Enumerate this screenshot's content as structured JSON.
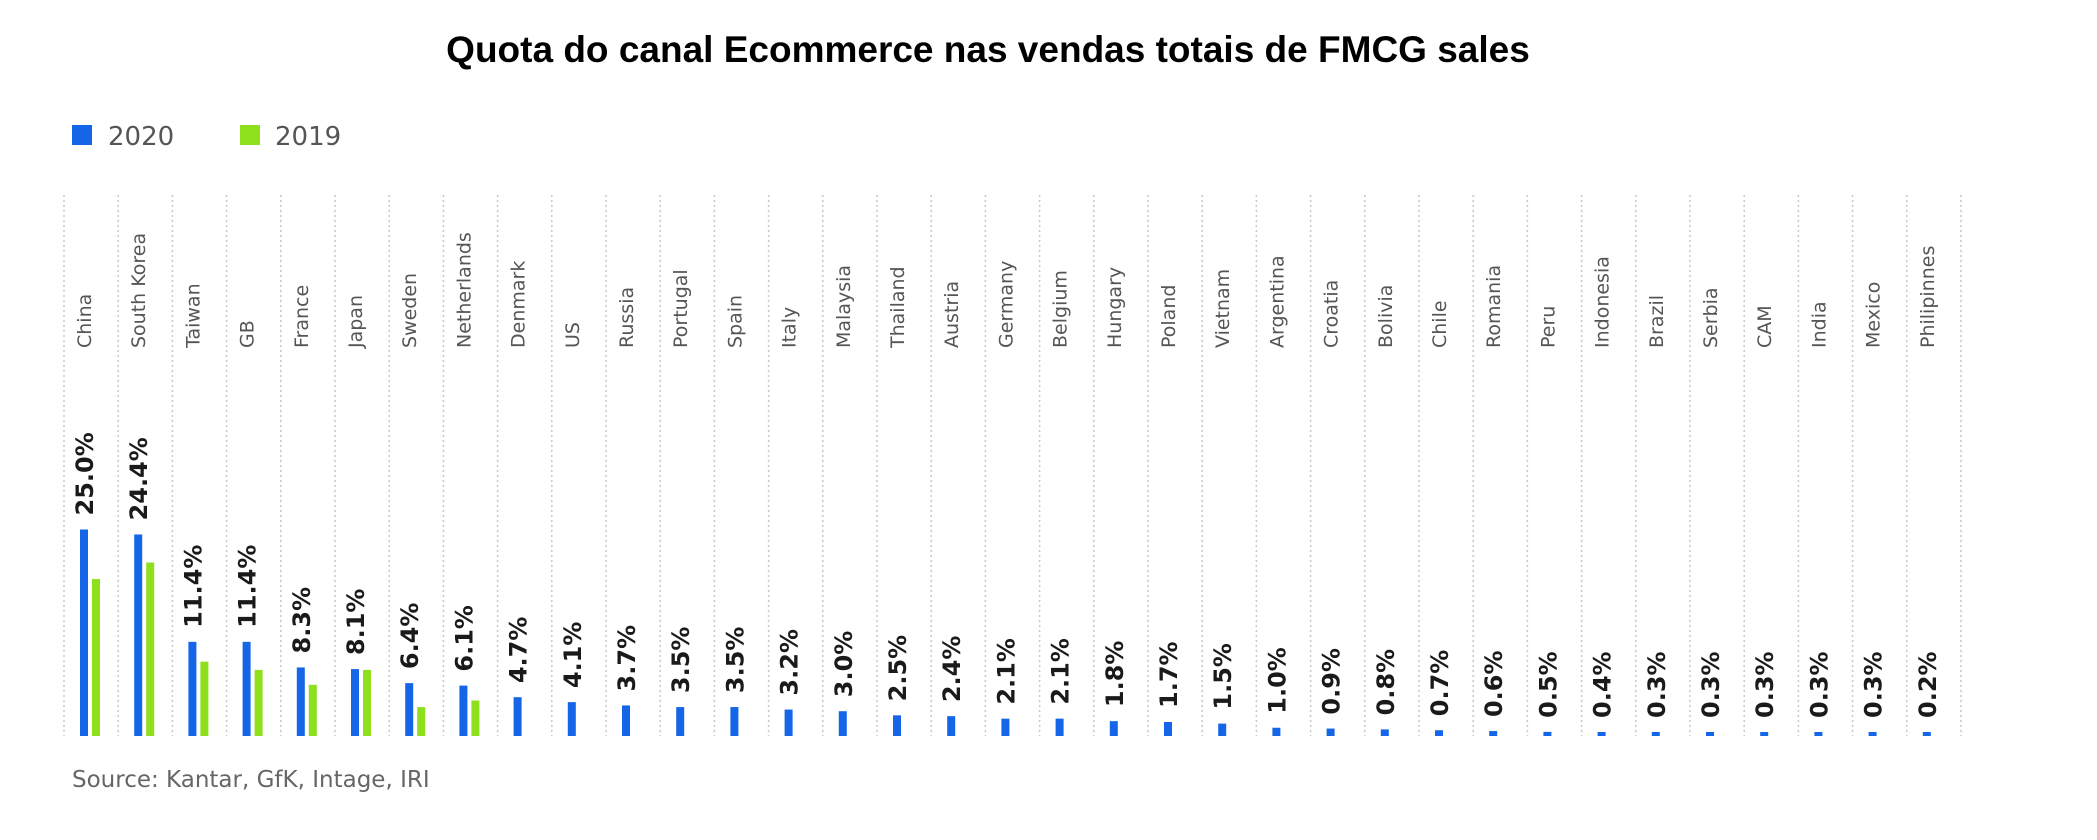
{
  "chart_data": {
    "type": "bar",
    "title": "Quota do canal Ecommerce nas vendas totais de FMCG sales",
    "categories": [
      "China",
      "South Korea",
      "Taiwan",
      "GB",
      "France",
      "Japan",
      "Sweden",
      "Netherlands",
      "Denmark",
      "US",
      "Russia",
      "Portugal",
      "Spain",
      "Italy",
      "Malaysia",
      "Thailand",
      "Austria",
      "Germany",
      "Belgium",
      "Hungary",
      "Poland",
      "Vietnam",
      "Argentina",
      "Croatia",
      "Bolivia",
      "Chile",
      "Romania",
      "Peru",
      "Indonesia",
      "Brazil",
      "Serbia",
      "CAM",
      "India",
      "Mexico",
      "Philipinnes"
    ],
    "series": [
      {
        "name": "2020",
        "color": "#1565e8",
        "values": [
          25.0,
          24.4,
          11.4,
          11.4,
          8.3,
          8.1,
          6.4,
          6.1,
          4.7,
          4.1,
          3.7,
          3.5,
          3.5,
          3.2,
          3.0,
          2.5,
          2.4,
          2.1,
          2.1,
          1.8,
          1.7,
          1.5,
          1.0,
          0.9,
          0.8,
          0.7,
          0.6,
          0.5,
          0.4,
          0.3,
          0.3,
          0.3,
          0.3,
          0.3,
          0.2
        ],
        "labels": [
          "25.0%",
          "24.4%",
          "11.4%",
          "11.4%",
          "8.3%",
          "8.1%",
          "6.4%",
          "6.1%",
          "4.7%",
          "4.1%",
          "3.7%",
          "3.5%",
          "3.5%",
          "3.2%",
          "3.0%",
          "2.5%",
          "2.4%",
          "2.1%",
          "2.1%",
          "1.8%",
          "1.7%",
          "1.5%",
          "1.0%",
          "0.9%",
          "0.8%",
          "0.7%",
          "0.6%",
          "0.5%",
          "0.4%",
          "0.3%",
          "0.3%",
          "0.3%",
          "0.3%",
          "0.3%",
          "0.2%"
        ]
      },
      {
        "name": "2019",
        "color": "#8ee01c",
        "values": [
          19.0,
          21.0,
          9.0,
          8.0,
          6.2,
          8.0,
          3.5,
          4.3,
          null,
          null,
          null,
          null,
          null,
          null,
          null,
          null,
          null,
          null,
          null,
          null,
          null,
          null,
          null,
          null,
          null,
          null,
          null,
          null,
          null,
          null,
          null,
          null,
          null,
          null,
          null
        ]
      }
    ],
    "ylim": [
      0,
      25
    ],
    "legend_position": "top-left",
    "grid": "vertical dotted separators",
    "source": "Source: Kantar, GfK, Intage, IRI"
  }
}
